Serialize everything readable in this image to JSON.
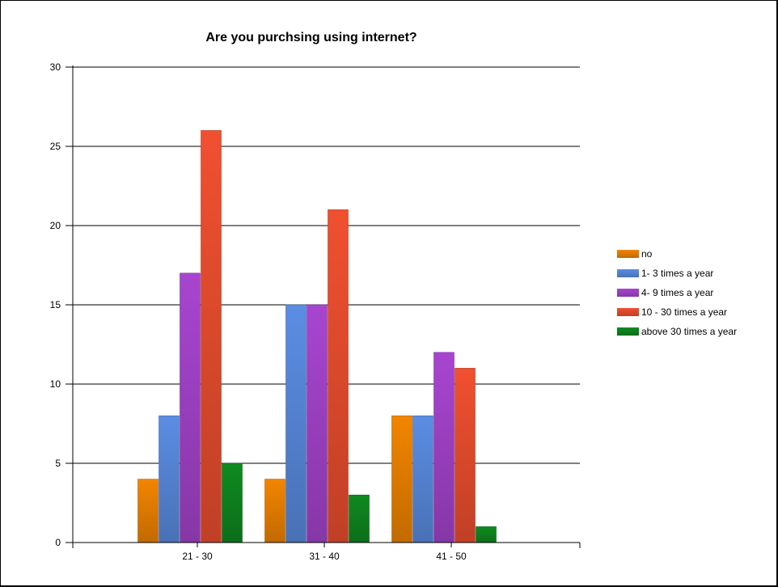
{
  "chart_data": {
    "type": "bar",
    "title": "Are you purchsing using internet?",
    "xlabel": "",
    "ylabel": "",
    "categories": [
      "21 - 30",
      "31 - 40",
      "41 - 50"
    ],
    "ylim": [
      0,
      30
    ],
    "yticks": [
      0,
      5,
      10,
      15,
      20,
      25,
      30
    ],
    "grid": true,
    "legend_position": "right",
    "series": [
      {
        "name": "no",
        "color": "#f28500",
        "values": [
          4,
          4,
          8
        ]
      },
      {
        "name": "1- 3 times a year",
        "color": "#5b8de3",
        "values": [
          8,
          15,
          8
        ]
      },
      {
        "name": "4- 9 times a year",
        "color": "#a845d0",
        "values": [
          17,
          15,
          12
        ]
      },
      {
        "name": "10 - 30 times a year",
        "color": "#f05030",
        "values": [
          26,
          21,
          11
        ]
      },
      {
        "name": "above 30 times a year",
        "color": "#0f8a20",
        "values": [
          5,
          3,
          1
        ]
      }
    ]
  }
}
